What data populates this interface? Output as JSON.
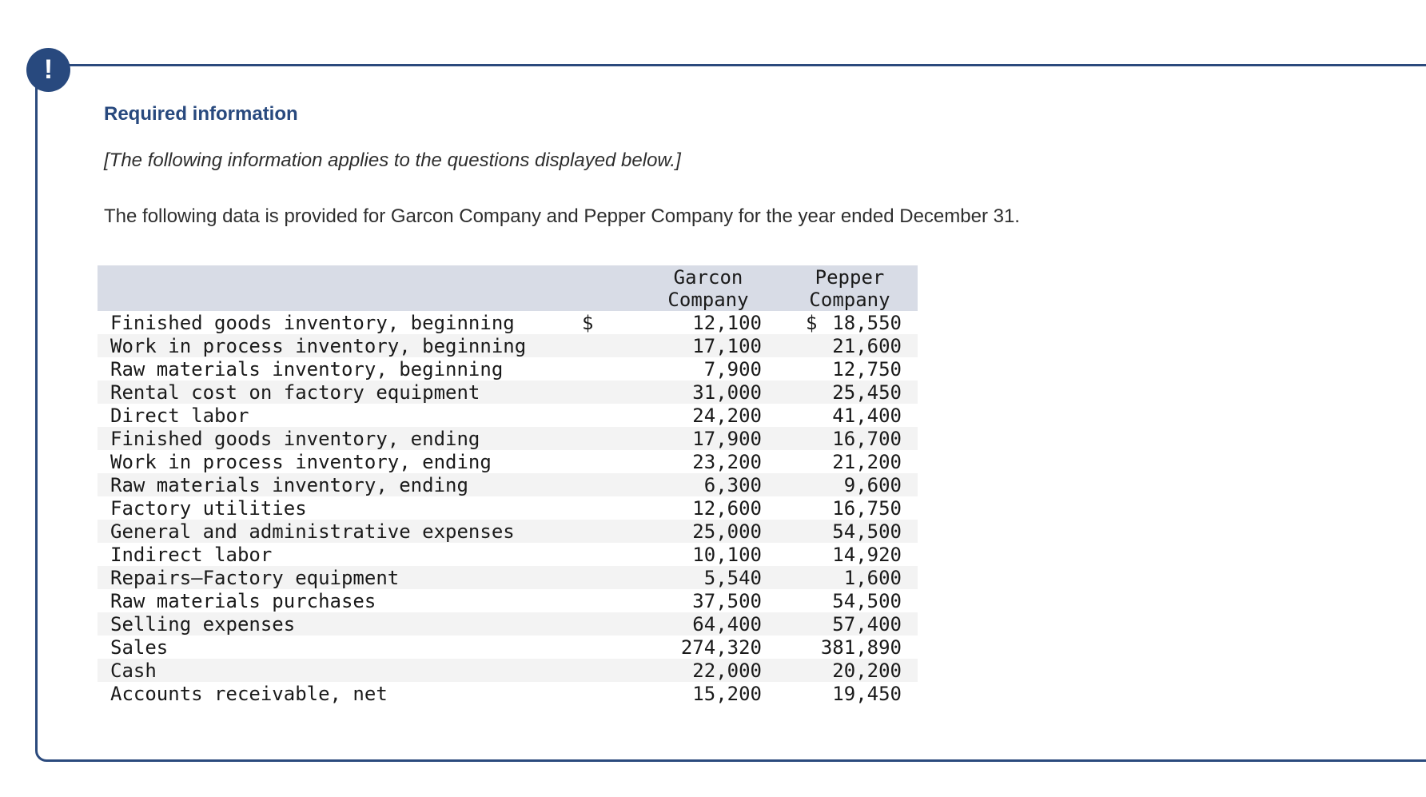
{
  "alert": {
    "icon_glyph": "!"
  },
  "card": {
    "heading": "Required information",
    "note": "[The following information applies to the questions displayed below.]",
    "description": "The following data is provided for Garcon Company and Pepper Company for the year ended December 31."
  },
  "table": {
    "headers": {
      "garcon": {
        "line1": "Garcon",
        "line2": "Company"
      },
      "pepper": {
        "line1": "Pepper",
        "line2": "Company"
      }
    },
    "rows": [
      {
        "label": "Finished goods inventory, beginning",
        "garcon_prefix": "$",
        "garcon": "12,100",
        "pepper_prefix": "$",
        "pepper": "18,550"
      },
      {
        "label": "Work in process inventory, beginning",
        "garcon_prefix": "",
        "garcon": "17,100",
        "pepper_prefix": "",
        "pepper": "21,600"
      },
      {
        "label": "Raw materials inventory, beginning",
        "garcon_prefix": "",
        "garcon": "7,900",
        "pepper_prefix": "",
        "pepper": "12,750"
      },
      {
        "label": "Rental cost on factory equipment",
        "garcon_prefix": "",
        "garcon": "31,000",
        "pepper_prefix": "",
        "pepper": "25,450"
      },
      {
        "label": "Direct labor",
        "garcon_prefix": "",
        "garcon": "24,200",
        "pepper_prefix": "",
        "pepper": "41,400"
      },
      {
        "label": "Finished goods inventory, ending",
        "garcon_prefix": "",
        "garcon": "17,900",
        "pepper_prefix": "",
        "pepper": "16,700"
      },
      {
        "label": "Work in process inventory, ending",
        "garcon_prefix": "",
        "garcon": "23,200",
        "pepper_prefix": "",
        "pepper": "21,200"
      },
      {
        "label": "Raw materials inventory, ending",
        "garcon_prefix": "",
        "garcon": "6,300",
        "pepper_prefix": "",
        "pepper": "9,600"
      },
      {
        "label": "Factory utilities",
        "garcon_prefix": "",
        "garcon": "12,600",
        "pepper_prefix": "",
        "pepper": "16,750"
      },
      {
        "label": "General and administrative expenses",
        "garcon_prefix": "",
        "garcon": "25,000",
        "pepper_prefix": "",
        "pepper": "54,500"
      },
      {
        "label": "Indirect labor",
        "garcon_prefix": "",
        "garcon": "10,100",
        "pepper_prefix": "",
        "pepper": "14,920"
      },
      {
        "label": "Repairs—Factory equipment",
        "garcon_prefix": "",
        "garcon": "5,540",
        "pepper_prefix": "",
        "pepper": "1,600"
      },
      {
        "label": "Raw materials purchases",
        "garcon_prefix": "",
        "garcon": "37,500",
        "pepper_prefix": "",
        "pepper": "54,500"
      },
      {
        "label": "Selling expenses",
        "garcon_prefix": "",
        "garcon": "64,400",
        "pepper_prefix": "",
        "pepper": "57,400"
      },
      {
        "label": "Sales",
        "garcon_prefix": "",
        "garcon": "274,320",
        "pepper_prefix": "",
        "pepper": "381,890"
      },
      {
        "label": "Cash",
        "garcon_prefix": "",
        "garcon": "22,000",
        "pepper_prefix": "",
        "pepper": "20,200"
      },
      {
        "label": "Accounts receivable, net",
        "garcon_prefix": "",
        "garcon": "15,200",
        "pepper_prefix": "",
        "pepper": "19,450"
      }
    ]
  },
  "colors": {
    "accent_blue": "#28497e",
    "card_border": "#2b4a7d",
    "header_bg": "#d8dce6",
    "stripe_bg": "#f3f3f3"
  }
}
